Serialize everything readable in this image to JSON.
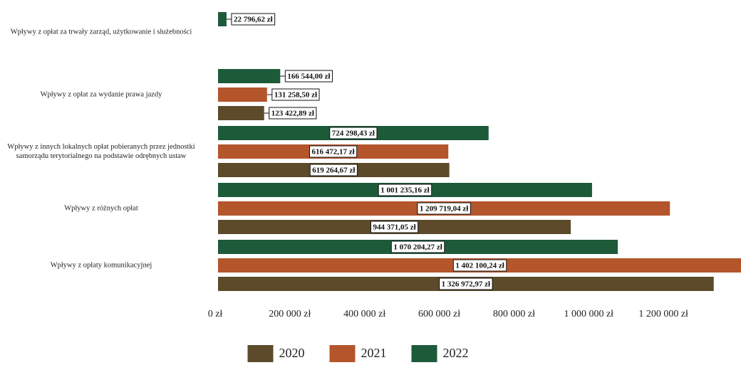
{
  "chart_data": {
    "type": "bar",
    "orientation": "horizontal",
    "categories": [
      "Wpływy z opłat za trwały zarząd, użytkowanie i służebności",
      "Wpływy z opłat za wydanie prawa jazdy",
      "Wpływy z innych lokalnych opłat pobieranych przez jednostki samorządu terytorialnego na podstawie odrębnych ustaw",
      "Wpływy z różnych opłat",
      "Wpływy z opłaty komunikacyjnej"
    ],
    "series": [
      {
        "name": "2020",
        "color": "#5c4a2b",
        "values": [
          null,
          123422.89,
          619264.67,
          944371.05,
          1326972.97
        ],
        "value_labels": [
          null,
          "123 422,89 zł",
          "619 264,67 zł",
          "944 371,05 zł",
          "1 326 972,97 zł"
        ]
      },
      {
        "name": "2021",
        "color": "#b4552b",
        "values": [
          null,
          131258.5,
          616472.17,
          1209719.04,
          1402100.24
        ],
        "value_labels": [
          null,
          "131 258,50 zł",
          "616 472,17 zł",
          "1 209 719,04 zł",
          "1 402 100,24 zł"
        ]
      },
      {
        "name": "2022",
        "color": "#1d5a3a",
        "values": [
          22796.62,
          166544.0,
          724298.43,
          1001235.16,
          1070204.27
        ],
        "value_labels": [
          "22 796,62 zł",
          "166 544,00 zł",
          "724 298,43 zł",
          "1 001 235,16 zł",
          "1 070 204,27 zł"
        ]
      }
    ],
    "xlim": [
      0,
      1400000
    ],
    "xticks": [
      {
        "value": 0,
        "label": "0 zł"
      },
      {
        "value": 200000,
        "label": "200 000 zł"
      },
      {
        "value": 400000,
        "label": "400 000 zł"
      },
      {
        "value": 600000,
        "label": "600 000 zł"
      },
      {
        "value": 800000,
        "label": "800 000 zł"
      },
      {
        "value": 1000000,
        "label": "1 000 000 zł"
      },
      {
        "value": 1200000,
        "label": "1 200 000 zł"
      }
    ],
    "grid": false,
    "legend": "bottom"
  }
}
